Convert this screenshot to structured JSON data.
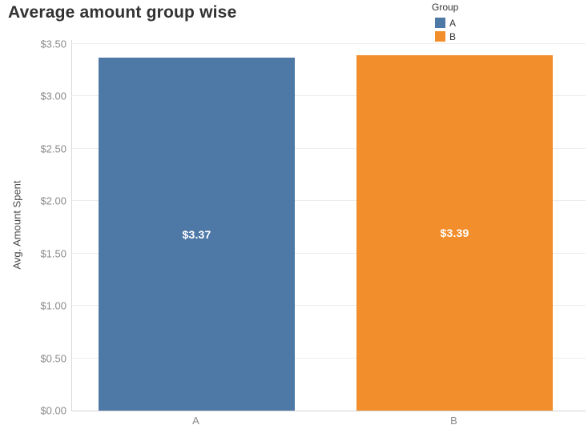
{
  "title": "Average amount group wise",
  "chart_data": {
    "type": "bar",
    "title": "Average amount group wise",
    "categories": [
      "A",
      "B"
    ],
    "values": [
      3.37,
      3.39
    ],
    "value_labels": [
      "$3.37",
      "$3.39"
    ],
    "colors": [
      "#4e79a7",
      "#f28e2b"
    ],
    "xlabel": "",
    "ylabel": "Avg. Amount Spent",
    "ylim": [
      0,
      3.5
    ],
    "ytick_step": 0.5,
    "yticks": [
      {
        "value": 0.0,
        "label": "$0.00"
      },
      {
        "value": 0.5,
        "label": "$0.50"
      },
      {
        "value": 1.0,
        "label": "$1.00"
      },
      {
        "value": 1.5,
        "label": "$1.50"
      },
      {
        "value": 2.0,
        "label": "$2.00"
      },
      {
        "value": 2.5,
        "label": "$2.50"
      },
      {
        "value": 3.0,
        "label": "$3.00"
      },
      {
        "value": 3.5,
        "label": "$3.50"
      }
    ],
    "grid": true,
    "legend_position": "top",
    "legend": {
      "title": "Group",
      "entries": [
        {
          "label": "A",
          "color": "#4e79a7"
        },
        {
          "label": "B",
          "color": "#f28e2b"
        }
      ]
    }
  }
}
